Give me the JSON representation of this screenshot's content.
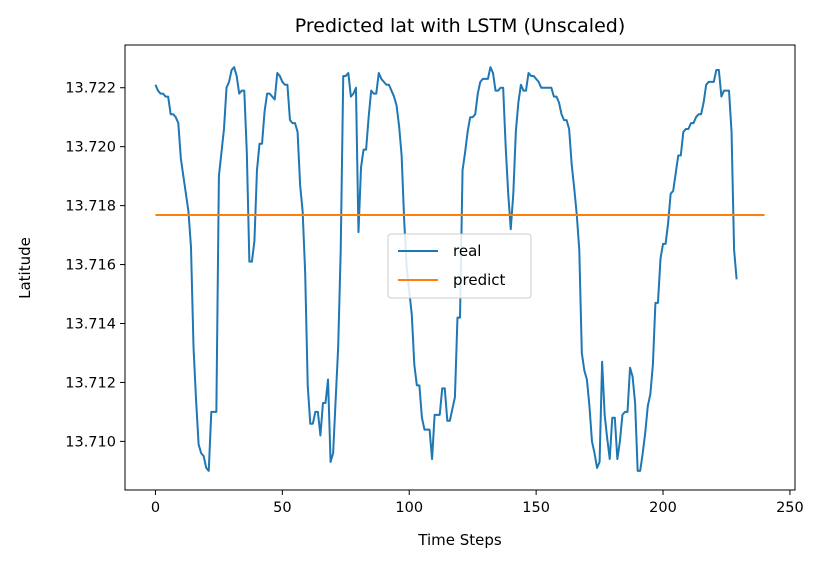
{
  "chart_data": {
    "type": "line",
    "title": "Predicted lat with LSTM (Unscaled)",
    "xlabel": "Time Steps",
    "ylabel": "Latitude",
    "xlim": [
      -12,
      252
    ],
    "ylim": [
      13.70835,
      13.72345
    ],
    "xticks": [
      0,
      50,
      100,
      150,
      200,
      250
    ],
    "xtick_labels": [
      "0",
      "50",
      "100",
      "150",
      "200",
      "250"
    ],
    "yticks": [
      13.71,
      13.712,
      13.714,
      13.716,
      13.718,
      13.72,
      13.722
    ],
    "ytick_labels": [
      "13.710",
      "13.712",
      "13.714",
      "13.716",
      "13.718",
      "13.720",
      "13.722"
    ],
    "grid": false,
    "legend_position": "center",
    "series": [
      {
        "name": "real",
        "color": "#1f77b4",
        "points": [
          [
            0,
            13.7221
          ],
          [
            1,
            13.7219
          ],
          [
            2,
            13.7218
          ],
          [
            3,
            13.7218
          ],
          [
            4,
            13.7217
          ],
          [
            5,
            13.7217
          ],
          [
            6,
            13.7211
          ],
          [
            7,
            13.7211
          ],
          [
            8,
            13.721
          ],
          [
            9,
            13.7208
          ],
          [
            10,
            13.7196
          ],
          [
            11,
            13.719
          ],
          [
            12,
            13.7184
          ],
          [
            13,
            13.7178
          ],
          [
            14,
            13.7166
          ],
          [
            15,
            13.7132
          ],
          [
            16,
            13.7114
          ],
          [
            17,
            13.7099
          ],
          [
            18,
            13.7096
          ],
          [
            19,
            13.7095
          ],
          [
            20,
            13.7091
          ],
          [
            21,
            13.709
          ],
          [
            22,
            13.711
          ],
          [
            23,
            13.711
          ],
          [
            24,
            13.711
          ],
          [
            25,
            13.719
          ],
          [
            26,
            13.7198
          ],
          [
            27,
            13.7206
          ],
          [
            28,
            13.722
          ],
          [
            29,
            13.7222
          ],
          [
            30,
            13.7226
          ],
          [
            31,
            13.7227
          ],
          [
            32,
            13.7224
          ],
          [
            33,
            13.7218
          ],
          [
            34,
            13.7219
          ],
          [
            35,
            13.7219
          ],
          [
            36,
            13.7198
          ],
          [
            37,
            13.7161
          ],
          [
            38,
            13.7161
          ],
          [
            39,
            13.7168
          ],
          [
            40,
            13.7192
          ],
          [
            41,
            13.7201
          ],
          [
            42,
            13.7201
          ],
          [
            43,
            13.7212
          ],
          [
            44,
            13.7218
          ],
          [
            45,
            13.7218
          ],
          [
            46,
            13.7217
          ],
          [
            47,
            13.7216
          ],
          [
            48,
            13.7225
          ],
          [
            49,
            13.7224
          ],
          [
            50,
            13.7222
          ],
          [
            51,
            13.7221
          ],
          [
            52,
            13.7221
          ],
          [
            53,
            13.7209
          ],
          [
            54,
            13.7208
          ],
          [
            55,
            13.7208
          ],
          [
            56,
            13.7205
          ],
          [
            57,
            13.7187
          ],
          [
            58,
            13.7178
          ],
          [
            59,
            13.7157
          ],
          [
            60,
            13.7119
          ],
          [
            61,
            13.7106
          ],
          [
            62,
            13.7106
          ],
          [
            63,
            13.711
          ],
          [
            64,
            13.711
          ],
          [
            65,
            13.7102
          ],
          [
            66,
            13.7113
          ],
          [
            67,
            13.7113
          ],
          [
            68,
            13.7121
          ],
          [
            69,
            13.7093
          ],
          [
            70,
            13.7096
          ],
          [
            71,
            13.7114
          ],
          [
            72,
            13.7132
          ],
          [
            73,
            13.7165
          ],
          [
            74,
            13.7224
          ],
          [
            75,
            13.7224
          ],
          [
            76,
            13.7225
          ],
          [
            77,
            13.7217
          ],
          [
            78,
            13.7218
          ],
          [
            79,
            13.722
          ],
          [
            80,
            13.7171
          ],
          [
            81,
            13.7193
          ],
          [
            82,
            13.7199
          ],
          [
            83,
            13.7199
          ],
          [
            84,
            13.721
          ],
          [
            85,
            13.7219
          ],
          [
            86,
            13.7218
          ],
          [
            87,
            13.7218
          ],
          [
            88,
            13.7225
          ],
          [
            89,
            13.7223
          ],
          [
            90,
            13.7222
          ],
          [
            91,
            13.7221
          ],
          [
            92,
            13.7221
          ],
          [
            93,
            13.7219
          ],
          [
            94,
            13.7217
          ],
          [
            95,
            13.7214
          ],
          [
            96,
            13.7207
          ],
          [
            97,
            13.7197
          ],
          [
            98,
            13.7175
          ],
          [
            99,
            13.7159
          ],
          [
            100,
            13.7151
          ],
          [
            101,
            13.7143
          ],
          [
            102,
            13.7126
          ],
          [
            103,
            13.7119
          ],
          [
            104,
            13.7119
          ],
          [
            105,
            13.7108
          ],
          [
            106,
            13.7104
          ],
          [
            107,
            13.7104
          ],
          [
            108,
            13.7104
          ],
          [
            109,
            13.7094
          ],
          [
            110,
            13.7109
          ],
          [
            111,
            13.7109
          ],
          [
            112,
            13.7109
          ],
          [
            113,
            13.7118
          ],
          [
            114,
            13.7118
          ],
          [
            115,
            13.7107
          ],
          [
            116,
            13.7107
          ],
          [
            117,
            13.7111
          ],
          [
            118,
            13.7115
          ],
          [
            119,
            13.7142
          ],
          [
            120,
            13.7142
          ],
          [
            121,
            13.7192
          ],
          [
            122,
            13.7198
          ],
          [
            123,
            13.7205
          ],
          [
            124,
            13.721
          ],
          [
            125,
            13.721
          ],
          [
            126,
            13.7211
          ],
          [
            127,
            13.7218
          ],
          [
            128,
            13.7222
          ],
          [
            129,
            13.7223
          ],
          [
            130,
            13.7223
          ],
          [
            131,
            13.7223
          ],
          [
            132,
            13.7227
          ],
          [
            133,
            13.7225
          ],
          [
            134,
            13.7219
          ],
          [
            135,
            13.7219
          ],
          [
            136,
            13.722
          ],
          [
            137,
            13.722
          ],
          [
            138,
            13.72
          ],
          [
            139,
            13.7184
          ],
          [
            140,
            13.7172
          ],
          [
            141,
            13.7184
          ],
          [
            142,
            13.7205
          ],
          [
            143,
            13.7215
          ],
          [
            144,
            13.7221
          ],
          [
            145,
            13.7219
          ],
          [
            146,
            13.7219
          ],
          [
            147,
            13.7225
          ],
          [
            148,
            13.7224
          ],
          [
            149,
            13.7224
          ],
          [
            150,
            13.7223
          ],
          [
            151,
            13.7222
          ],
          [
            152,
            13.722
          ],
          [
            153,
            13.722
          ],
          [
            154,
            13.722
          ],
          [
            155,
            13.722
          ],
          [
            156,
            13.722
          ],
          [
            157,
            13.7217
          ],
          [
            158,
            13.7217
          ],
          [
            159,
            13.7215
          ],
          [
            160,
            13.7211
          ],
          [
            161,
            13.7209
          ],
          [
            162,
            13.7209
          ],
          [
            163,
            13.7206
          ],
          [
            164,
            13.7194
          ],
          [
            165,
            13.7186
          ],
          [
            166,
            13.7177
          ],
          [
            167,
            13.7165
          ],
          [
            168,
            13.713
          ],
          [
            169,
            13.7124
          ],
          [
            170,
            13.7121
          ],
          [
            171,
            13.7112
          ],
          [
            172,
            13.71
          ],
          [
            173,
            13.7096
          ],
          [
            174,
            13.7091
          ],
          [
            175,
            13.7093
          ],
          [
            176,
            13.7127
          ],
          [
            177,
            13.7109
          ],
          [
            178,
            13.7101
          ],
          [
            179,
            13.7094
          ],
          [
            180,
            13.7108
          ],
          [
            181,
            13.7108
          ],
          [
            182,
            13.7094
          ],
          [
            183,
            13.71
          ],
          [
            184,
            13.7109
          ],
          [
            185,
            13.711
          ],
          [
            186,
            13.711
          ],
          [
            187,
            13.7125
          ],
          [
            188,
            13.7122
          ],
          [
            189,
            13.7113
          ],
          [
            190,
            13.709
          ],
          [
            191,
            13.709
          ],
          [
            192,
            13.7096
          ],
          [
            193,
            13.7103
          ],
          [
            194,
            13.7112
          ],
          [
            195,
            13.7116
          ],
          [
            196,
            13.7126
          ],
          [
            197,
            13.7147
          ],
          [
            198,
            13.7147
          ],
          [
            199,
            13.7162
          ],
          [
            200,
            13.7167
          ],
          [
            201,
            13.7167
          ],
          [
            202,
            13.7174
          ],
          [
            203,
            13.7184
          ],
          [
            204,
            13.7185
          ],
          [
            205,
            13.7191
          ],
          [
            206,
            13.7197
          ],
          [
            207,
            13.7197
          ],
          [
            208,
            13.7205
          ],
          [
            209,
            13.7206
          ],
          [
            210,
            13.7206
          ],
          [
            211,
            13.7208
          ],
          [
            212,
            13.7208
          ],
          [
            213,
            13.721
          ],
          [
            214,
            13.7211
          ],
          [
            215,
            13.7211
          ],
          [
            216,
            13.7215
          ],
          [
            217,
            13.7221
          ],
          [
            218,
            13.7222
          ],
          [
            219,
            13.7222
          ],
          [
            220,
            13.7222
          ],
          [
            221,
            13.7226
          ],
          [
            222,
            13.7226
          ],
          [
            223,
            13.7217
          ],
          [
            224,
            13.7219
          ],
          [
            225,
            13.7219
          ],
          [
            226,
            13.7219
          ],
          [
            227,
            13.7205
          ],
          [
            228,
            13.7165
          ],
          [
            229,
            13.7155
          ]
        ]
      },
      {
        "name": "predict",
        "color": "#ff7f0e",
        "points": [
          [
            0,
            13.71768
          ],
          [
            240,
            13.71768
          ]
        ]
      }
    ]
  }
}
